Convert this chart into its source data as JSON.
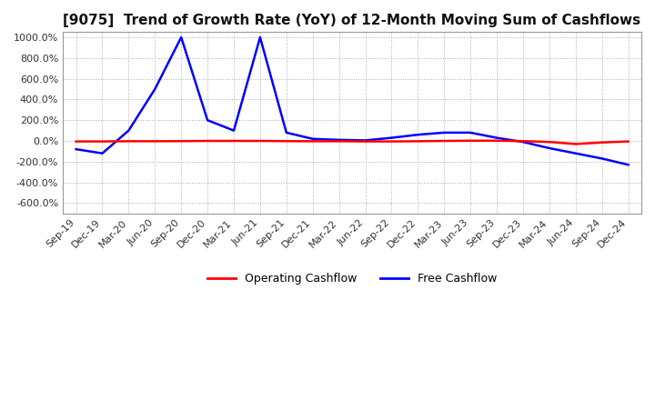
{
  "title": "[9075]  Trend of Growth Rate (YoY) of 12-Month Moving Sum of Cashflows",
  "title_fontsize": 11,
  "ylim": [
    -700,
    1050
  ],
  "yticks": [
    -600,
    -400,
    -200,
    0,
    200,
    400,
    600,
    800,
    1000
  ],
  "background_color": "#ffffff",
  "grid_color": "#aaaaaa",
  "legend_labels": [
    "Operating Cashflow",
    "Free Cashflow"
  ],
  "legend_colors": [
    "#ff0000",
    "#0000ff"
  ],
  "x_labels": [
    "Sep-19",
    "Dec-19",
    "Mar-20",
    "Jun-20",
    "Sep-20",
    "Dec-20",
    "Mar-21",
    "Jun-21",
    "Sep-21",
    "Dec-21",
    "Mar-22",
    "Jun-22",
    "Sep-22",
    "Dec-22",
    "Mar-23",
    "Jun-23",
    "Sep-23",
    "Dec-23",
    "Mar-24",
    "Jun-24",
    "Sep-24",
    "Dec-24"
  ],
  "operating_cashflow": [
    -5,
    -5,
    -3,
    -3,
    -2,
    0,
    0,
    0,
    -2,
    -3,
    -3,
    -5,
    -5,
    -3,
    0,
    2,
    2,
    -2,
    -10,
    -30,
    -15,
    -5
  ],
  "free_cashflow": [
    -80,
    -120,
    100,
    500,
    1000,
    200,
    100,
    1000,
    80,
    20,
    10,
    5,
    30,
    60,
    80,
    80,
    30,
    -10,
    -70,
    -120,
    -170,
    -230
  ]
}
